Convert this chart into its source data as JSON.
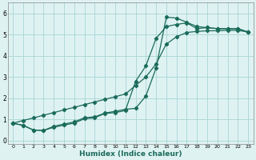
{
  "xlabel": "Humidex (Indice chaleur)",
  "bg_color": "#dff2f2",
  "grid_color": "#aed8d8",
  "line_color": "#1a6b5a",
  "xlim": [
    -0.5,
    23.5
  ],
  "ylim": [
    -0.15,
    6.5
  ],
  "xticks": [
    0,
    1,
    2,
    3,
    4,
    5,
    6,
    7,
    8,
    9,
    10,
    11,
    12,
    13,
    14,
    15,
    16,
    17,
    18,
    19,
    20,
    21,
    22,
    23
  ],
  "yticks": [
    0,
    1,
    2,
    3,
    4,
    5,
    6
  ],
  "line1_x": [
    0,
    1,
    2,
    3,
    4,
    5,
    6,
    7,
    8,
    9,
    10,
    11,
    12,
    13,
    14,
    15,
    16,
    17,
    18,
    19,
    20,
    21,
    22,
    23
  ],
  "line1_y": [
    0.82,
    0.72,
    0.5,
    0.48,
    0.68,
    0.78,
    0.88,
    1.08,
    1.12,
    1.3,
    1.38,
    1.48,
    1.52,
    2.1,
    3.42,
    5.82,
    5.78,
    5.58,
    5.38,
    5.33,
    5.28,
    5.28,
    5.28,
    5.12
  ],
  "line2_x": [
    0,
    1,
    2,
    3,
    4,
    5,
    6,
    7,
    8,
    9,
    10,
    11,
    12,
    13,
    14,
    15,
    16,
    17,
    18,
    19,
    20,
    21,
    22,
    23
  ],
  "line2_y": [
    0.82,
    0.72,
    0.5,
    0.48,
    0.63,
    0.73,
    0.83,
    1.03,
    1.08,
    1.28,
    1.32,
    1.42,
    2.8,
    3.52,
    4.82,
    5.38,
    5.48,
    5.55,
    5.28,
    5.33,
    5.28,
    5.28,
    5.28,
    5.12
  ],
  "line3_x": [
    0,
    1,
    2,
    3,
    4,
    5,
    6,
    7,
    8,
    9,
    10,
    11,
    12,
    13,
    14,
    15,
    16,
    17,
    18,
    19,
    20,
    21,
    22,
    23
  ],
  "line3_y": [
    0.82,
    0.95,
    1.07,
    1.2,
    1.32,
    1.45,
    1.57,
    1.7,
    1.82,
    1.95,
    2.07,
    2.2,
    2.6,
    3.0,
    3.62,
    4.55,
    4.9,
    5.1,
    5.15,
    5.18,
    5.18,
    5.2,
    5.2,
    5.12
  ]
}
